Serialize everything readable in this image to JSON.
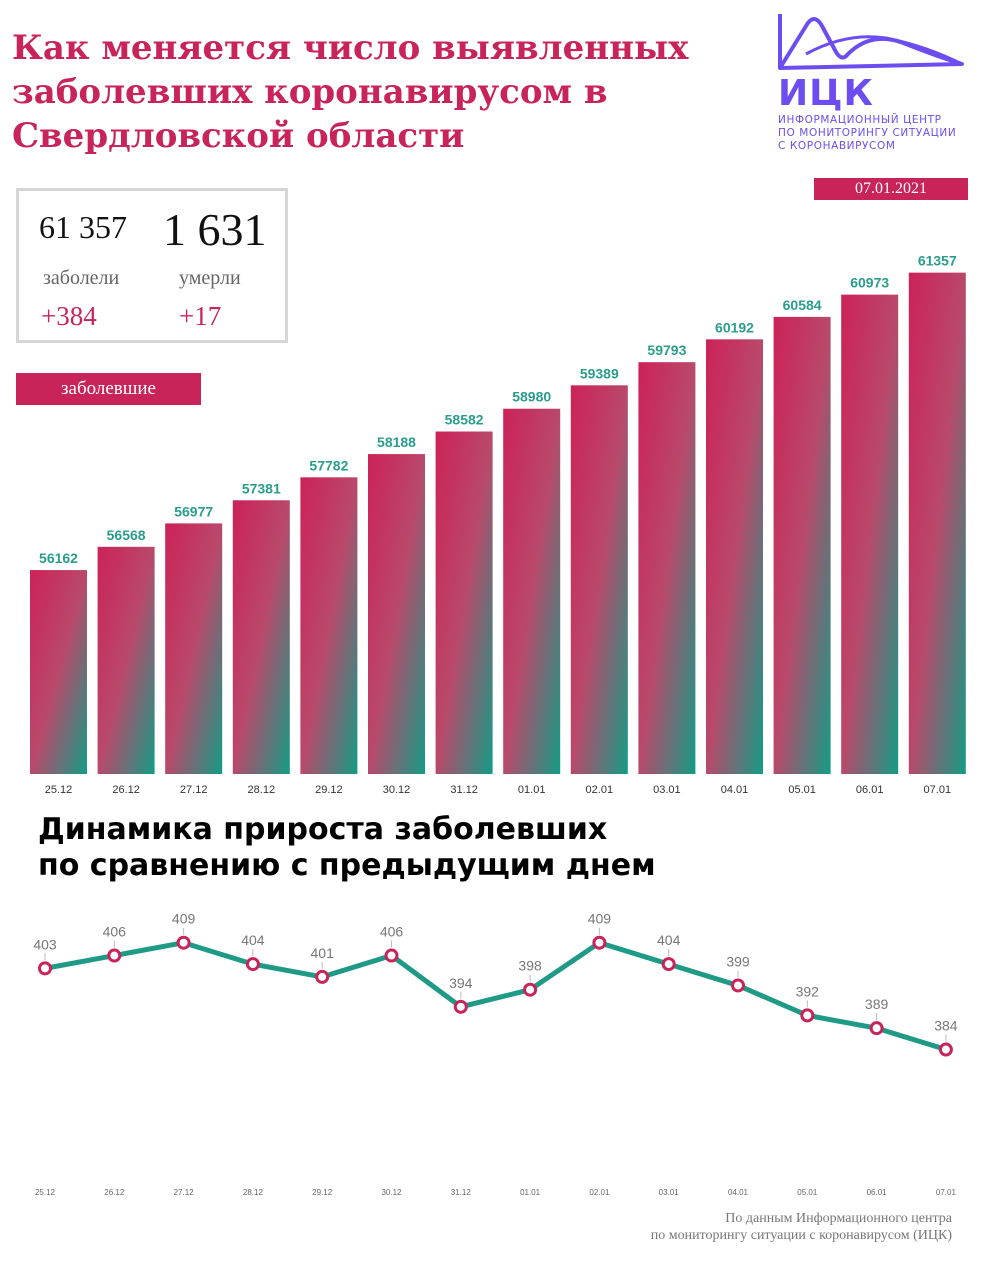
{
  "header": {
    "title_lines": [
      "Как меняется число выявленных",
      "заболевших коронавирусом в",
      "Свердловской области"
    ]
  },
  "logo": {
    "name": "ИЦК",
    "subtitle_lines": [
      "ИНФОРМАЦИОННЫЙ ЦЕНТР",
      "ПО МОНИТОРИНГУ СИТУАЦИИ",
      "С КОРОНАВИРУСОМ"
    ],
    "color": "#6e4df0"
  },
  "date": "07.01.2021",
  "stats": {
    "cases_total": "61 357",
    "cases_label": "заболели",
    "cases_delta": "+384",
    "deaths_total": "1 631",
    "deaths_label": "умерли",
    "deaths_delta": "+17"
  },
  "cases_badge": "заболевшие",
  "line_section": {
    "title_lines": [
      "Динамика прироста заболевших",
      "по сравнению с предыдущим днем"
    ]
  },
  "source_lines": [
    "По данным Информационного центра",
    "по мониторингу ситуации с коронавирусом (ИЦК)"
  ],
  "colors": {
    "accent": "#c8245a",
    "teal": "#1f9a87",
    "label_teal": "#2a9d8c"
  },
  "chart_data": [
    {
      "type": "bar",
      "categories": [
        "25.12",
        "26.12",
        "27.12",
        "28.12",
        "29.12",
        "30.12",
        "31.12",
        "01.01",
        "02.01",
        "03.01",
        "04.01",
        "05.01",
        "06.01",
        "07.01"
      ],
      "values": [
        56162,
        56568,
        56977,
        57381,
        57782,
        58188,
        58582,
        58980,
        59389,
        59793,
        60192,
        60584,
        60973,
        61357
      ],
      "title": "",
      "xlabel": "",
      "ylabel": "",
      "ylim": [
        52600,
        61700
      ],
      "grid": false
    },
    {
      "type": "line",
      "categories": [
        "25.12",
        "26.12",
        "27.12",
        "28.12",
        "29.12",
        "30.12",
        "31.12",
        "01.01",
        "02.01",
        "03.01",
        "04.01",
        "05.01",
        "06.01",
        "07.01"
      ],
      "values": [
        403,
        406,
        409,
        404,
        401,
        406,
        394,
        398,
        409,
        404,
        399,
        392,
        389,
        384
      ],
      "title": "",
      "xlabel": "",
      "ylabel": "",
      "ylim": [
        364,
        419
      ],
      "grid": false
    }
  ]
}
